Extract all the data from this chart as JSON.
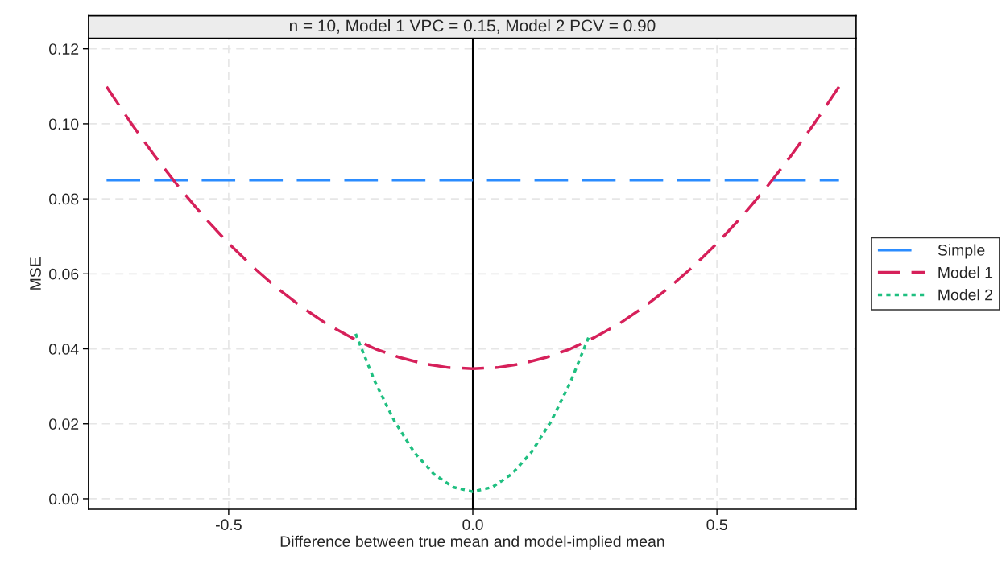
{
  "chart_data": {
    "type": "line",
    "title": "n = 10, Model 1 VPC = 0.15, Model 2 PCV = 0.90",
    "xlabel": "Difference between true mean and model-implied mean",
    "ylabel": "MSE",
    "xlim": [
      -0.787,
      0.785
    ],
    "ylim": [
      -0.0028,
      0.1228
    ],
    "xticks": [
      {
        "value": -0.5,
        "label": "-0.5"
      },
      {
        "value": 0,
        "label": "0.0"
      },
      {
        "value": 0.5,
        "label": "0.5"
      }
    ],
    "yticks": [
      {
        "value": 0,
        "label": "0.00"
      },
      {
        "value": 0.02,
        "label": "0.02"
      },
      {
        "value": 0.04,
        "label": "0.04"
      },
      {
        "value": 0.06,
        "label": "0.06"
      },
      {
        "value": 0.08,
        "label": "0.08"
      },
      {
        "value": 0.1,
        "label": "0.10"
      },
      {
        "value": 0.12,
        "label": "0.12"
      }
    ],
    "grid": true,
    "legend": "right",
    "marker": "none",
    "ref_lines": [
      {
        "axis": "x",
        "value": 0,
        "color": "#000000",
        "line_style": "solid"
      }
    ],
    "series": [
      {
        "name": "Simple",
        "color": "#2b8cff",
        "line_style": "dashed",
        "x": [
          -0.75,
          0.75
        ],
        "values": [
          0.085,
          0.085
        ]
      },
      {
        "name": "Model 1",
        "color": "#d6205a",
        "line_style": "dashed",
        "x": [
          -0.75,
          -0.7,
          -0.65,
          -0.6,
          -0.55,
          -0.5,
          -0.45,
          -0.4,
          -0.35,
          -0.3,
          -0.25,
          -0.2,
          -0.15,
          -0.1,
          -0.05,
          0,
          0.05,
          0.1,
          0.15,
          0.2,
          0.25,
          0.3,
          0.35,
          0.4,
          0.45,
          0.5,
          0.55,
          0.6,
          0.65,
          0.7,
          0.75
        ],
        "values": [
          0.1099,
          0.1002,
          0.0912,
          0.0828,
          0.0751,
          0.0681,
          0.0618,
          0.0561,
          0.0511,
          0.0467,
          0.0431,
          0.04,
          0.0377,
          0.036,
          0.035,
          0.0347,
          0.035,
          0.036,
          0.0377,
          0.04,
          0.0431,
          0.0467,
          0.0511,
          0.0561,
          0.0618,
          0.0681,
          0.0751,
          0.0828,
          0.0912,
          0.1002,
          0.1099
        ]
      },
      {
        "name": "Model 2",
        "color": "#1fbf80",
        "line_style": "dotted",
        "x": [
          -0.24,
          -0.2,
          -0.16,
          -0.12,
          -0.08,
          -0.04,
          0,
          0.04,
          0.08,
          0.12,
          0.16,
          0.2,
          0.24
        ],
        "values": [
          0.044,
          0.0311,
          0.0206,
          0.0124,
          0.0066,
          0.0031,
          0.0019,
          0.0031,
          0.0066,
          0.0124,
          0.0206,
          0.0311,
          0.044
        ]
      }
    ]
  }
}
